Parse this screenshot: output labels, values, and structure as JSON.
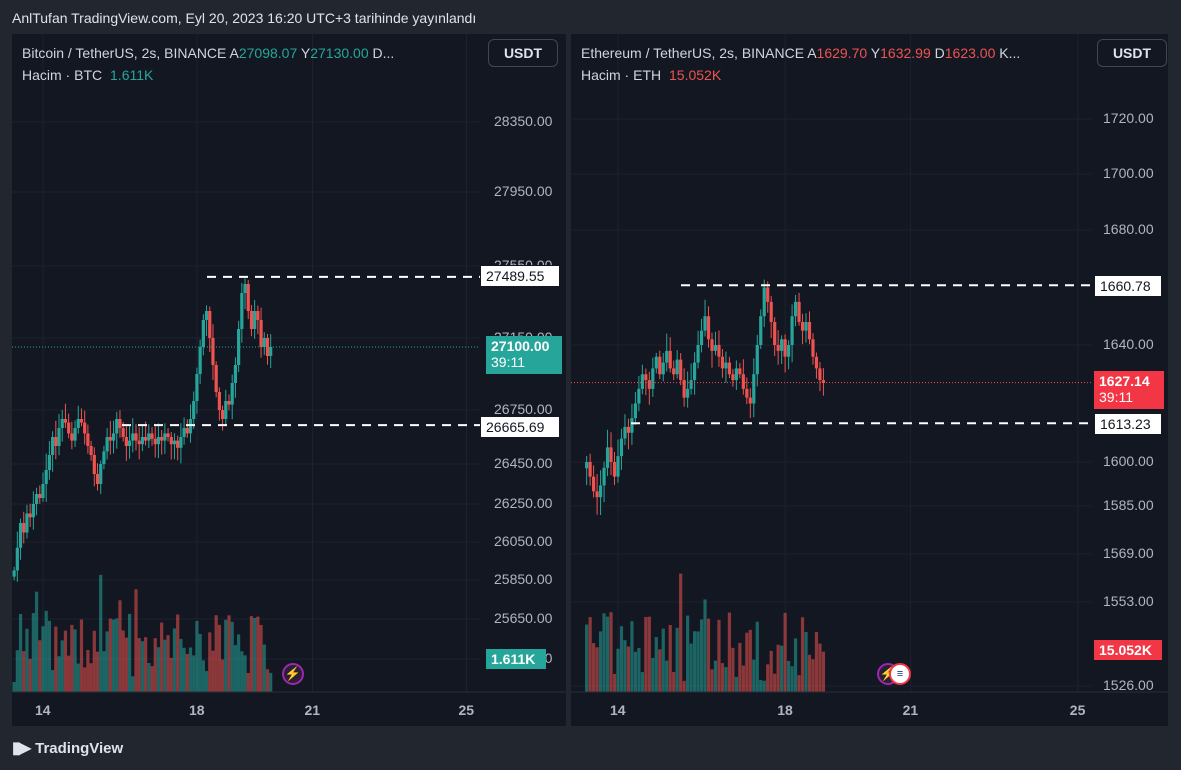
{
  "caption": "AnlTufan TradingView.com, Eyl 20, 2023 16:20 UTC+3 tarihinde yayınlandı",
  "footer_logo": "TradingView",
  "colors": {
    "up": "#26a69a",
    "down": "#ef5350",
    "background": "#131722",
    "grid": "#1e222d"
  },
  "icons": [
    "tradingview-logo-icon",
    "lightning-event-icon",
    "us-flag-event-icon"
  ],
  "chart_data": [
    {
      "type": "candlestick",
      "symbol_line": {
        "name": "Bitcoin / TetherUS, 2s, BINANCE",
        "o_label": "A",
        "o_value": "27098.07",
        "h_label": "Y",
        "h_value": "27130.00",
        "tail": "D..."
      },
      "volume_line": {
        "label": "Hacim · BTC",
        "value": "1.611K"
      },
      "currency_button": "USDT",
      "y_ticks": [
        "28350.00",
        "27950.00",
        "27550.00",
        "27150.00",
        "26750.00",
        "26450.00",
        "26250.00",
        "26050.00",
        "25850.00",
        "25650.00",
        "25450.00"
      ],
      "y_tick_values": [
        28350,
        27950,
        27550,
        27150,
        26750,
        26450,
        26250,
        26050,
        25850,
        25650,
        25450
      ],
      "x_ticks": [
        "14",
        "18",
        "21",
        "25"
      ],
      "x_tick_values": [
        14,
        18,
        21,
        25
      ],
      "horizontal_lines": [
        {
          "label": "27489.55",
          "value": 27489.55
        },
        {
          "label": "26665.69",
          "value": 26665.69
        }
      ],
      "last_price": {
        "value": "27100.00",
        "countdown": "39:11",
        "direction": "up"
      },
      "volume_label": {
        "value": "1.611K",
        "direction": "up"
      },
      "event_icons": [
        "lightning"
      ],
      "series": [
        {
          "name": "price",
          "x_start": 13.25,
          "x_step": 0.0833,
          "close": [
            25900,
            26020,
            26150,
            26100,
            26200,
            26180,
            26250,
            26300,
            26280,
            26350,
            26420,
            26500,
            26600,
            26550,
            26650,
            26700,
            26680,
            26620,
            26580,
            26650,
            26700,
            26680,
            26620,
            26550,
            26500,
            26400,
            26350,
            26450,
            26520,
            26600,
            26580,
            26620,
            26700,
            26650,
            26600,
            26550,
            26580,
            26620,
            26580,
            26560,
            26600,
            26580,
            26620,
            26590,
            26560,
            26600,
            26580,
            26620,
            26600,
            26560,
            26580,
            26540,
            26600,
            26650,
            26620,
            26700,
            26800,
            26950,
            27100,
            27250,
            27300,
            27150,
            27000,
            26850,
            26750,
            26700,
            26800,
            26780,
            26900,
            27000,
            27200,
            27400,
            27450,
            27300,
            27200,
            27300,
            27250,
            27100,
            27150,
            27050,
            27100
          ]
        },
        {
          "name": "volume"
        }
      ]
    },
    {
      "type": "candlestick",
      "symbol_line": {
        "name": "Ethereum / TetherUS, 2s, BINANCE",
        "o_label": "A",
        "o_value": "1629.70",
        "h_label": "Y",
        "h_value": "1632.99",
        "l_label": "D",
        "l_value": "1623.00",
        "tail": "K..."
      },
      "volume_line": {
        "label": "Hacim · ETH",
        "value": "15.052K"
      },
      "currency_button": "USDT",
      "y_ticks": [
        "1720.00",
        "1700.00",
        "1680.00",
        "1640.00",
        "1600.00",
        "1585.00",
        "1569.00",
        "1553.00",
        "1526.00"
      ],
      "y_tick_values": [
        1720,
        1700,
        1680,
        1640,
        1600,
        1585,
        1569,
        1553,
        1526
      ],
      "x_ticks": [
        "14",
        "18",
        "21",
        "25"
      ],
      "x_tick_values": [
        14,
        18,
        21,
        25
      ],
      "horizontal_lines": [
        {
          "label": "1660.78",
          "value": 1660.78
        },
        {
          "label": "1613.23",
          "value": 1613.23
        }
      ],
      "last_price": {
        "value": "1627.14",
        "countdown": "39:11",
        "direction": "down"
      },
      "volume_label": {
        "value": "15.052K",
        "direction": "down"
      },
      "event_icons": [
        "lightning",
        "us-flag"
      ],
      "series": [
        {
          "name": "price",
          "x_start": 13.25,
          "x_step": 0.0833,
          "close": [
            1600,
            1595,
            1590,
            1588,
            1592,
            1598,
            1605,
            1600,
            1595,
            1602,
            1608,
            1612,
            1610,
            1615,
            1620,
            1625,
            1630,
            1628,
            1625,
            1632,
            1636,
            1630,
            1634,
            1638,
            1632,
            1630,
            1635,
            1628,
            1622,
            1625,
            1628,
            1634,
            1640,
            1645,
            1650,
            1642,
            1638,
            1640,
            1636,
            1632,
            1634,
            1630,
            1628,
            1632,
            1630,
            1625,
            1622,
            1620,
            1630,
            1640,
            1650,
            1660,
            1655,
            1648,
            1640,
            1638,
            1642,
            1636,
            1640,
            1650,
            1655,
            1648,
            1645,
            1648,
            1642,
            1636,
            1632,
            1628,
            1627
          ]
        },
        {
          "name": "volume"
        }
      ]
    }
  ]
}
